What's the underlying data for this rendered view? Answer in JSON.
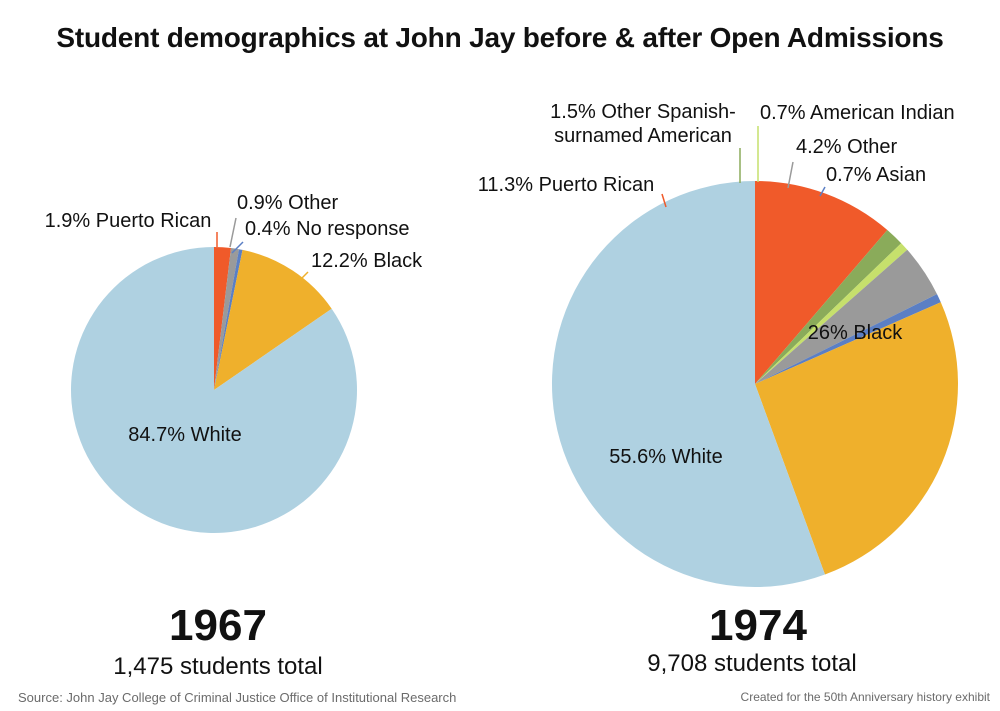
{
  "title": "Student demographics at John Jay before & after Open Admissions",
  "footer": {
    "source": "Source: John Jay College of Criminal Justice Office of Institutional Research",
    "credit": "Created for the 50th Anniversary history exhibit"
  },
  "colors": {
    "white": "#afd1e1",
    "black": "#efb02c",
    "puerto_rican": "#f05a2a",
    "other": "#9a9a9a",
    "no_response": "#5b7fc4",
    "other_spanish": "#8aab5a",
    "american_indian": "#c6e06c",
    "asian": "#5b7fc4"
  },
  "chart_data": [
    {
      "type": "pie",
      "year": "1967",
      "total_label": "1,475 students total",
      "slices": [
        {
          "label": "1.9% Puerto Rican",
          "value": 1.9,
          "color": "#f05a2a"
        },
        {
          "label": "0.9% Other",
          "value": 0.9,
          "color": "#9a9a9a"
        },
        {
          "label": "0.4% No response",
          "value": 0.4,
          "color": "#5b7fc4"
        },
        {
          "label": "12.2% Black",
          "value": 12.2,
          "color": "#efb02c"
        },
        {
          "label": "84.7% White",
          "value": 84.7,
          "color": "#afd1e1"
        }
      ]
    },
    {
      "type": "pie",
      "year": "1974",
      "total_label": "9,708 students total",
      "slices": [
        {
          "label": "11.3% Puerto Rican",
          "value": 11.3,
          "color": "#f05a2a"
        },
        {
          "label": "1.5% Other Spanish-surnamed American",
          "value": 1.5,
          "color": "#8aab5a"
        },
        {
          "label": "0.7% American Indian",
          "value": 0.7,
          "color": "#c6e06c"
        },
        {
          "label": "4.2% Other",
          "value": 4.2,
          "color": "#9a9a9a"
        },
        {
          "label": "0.7% Asian",
          "value": 0.7,
          "color": "#5b7fc4"
        },
        {
          "label": "26% Black",
          "value": 26,
          "color": "#efb02c"
        },
        {
          "label": "55.6% White",
          "value": 55.6,
          "color": "#afd1e1"
        }
      ]
    }
  ]
}
